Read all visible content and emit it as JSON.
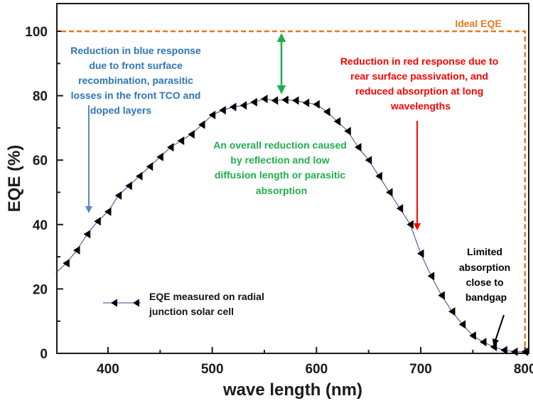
{
  "chart_data": {
    "type": "line",
    "xlabel": "wave length (nm)",
    "ylabel": "EQE (%)",
    "xlim": [
      350,
      810
    ],
    "ylim": [
      0,
      110
    ],
    "xticks": [
      400,
      500,
      600,
      700,
      800
    ],
    "yticks": [
      0,
      20,
      40,
      60,
      80,
      100
    ],
    "grid": false,
    "legend_position": "lower-left",
    "series": [
      {
        "name": "EQE measured on radial junction solar cell",
        "color": "#000000",
        "line_color": "#3b3f9a",
        "marker": "triangle-left",
        "x": [
          350,
          360,
          370,
          380,
          390,
          400,
          410,
          420,
          430,
          440,
          450,
          460,
          470,
          480,
          490,
          500,
          510,
          520,
          530,
          540,
          550,
          560,
          570,
          580,
          590,
          600,
          610,
          620,
          630,
          640,
          650,
          660,
          670,
          680,
          690,
          700,
          710,
          720,
          730,
          740,
          750,
          760,
          770,
          780,
          790,
          800
        ],
        "y": [
          25,
          28,
          32,
          37,
          41,
          44,
          49,
          52,
          55,
          58,
          61,
          64,
          66,
          68,
          71,
          74,
          75.5,
          76.5,
          77,
          78,
          79,
          78.5,
          78.7,
          78.5,
          77.8,
          77.3,
          75,
          72,
          69,
          64,
          60,
          55,
          50,
          45,
          40,
          31,
          24,
          18,
          13,
          9,
          5.5,
          3.5,
          2,
          1,
          0.5,
          0.5
        ]
      },
      {
        "name": "Ideal EQE",
        "color": "#e87722",
        "style": "dashed",
        "x": [
          355,
          800,
          800
        ],
        "y": [
          100,
          100,
          0
        ]
      }
    ],
    "annotations": {
      "ideal": "Ideal EQE",
      "blue": [
        "Reduction in blue response",
        "due to front surface",
        "recombination, parasitic",
        "losses in the front TCO and",
        "doped layers"
      ],
      "green": [
        "An overall reduction caused",
        "by reflection and low",
        "diffusion length or parasitic",
        "absorption"
      ],
      "red": [
        "Reduction in red response due to",
        "rear surface passivation, and",
        "reduced absorption at long",
        "wavelengths"
      ],
      "black": [
        "Limited",
        "absorption",
        "close to",
        "bandgap"
      ],
      "legend": [
        "EQE measured on radial",
        "junction solar cell"
      ]
    },
    "colors": {
      "blue": "#2e75b6",
      "green": "#1fae4b",
      "red": "#ff0000",
      "orange": "#e87722",
      "arrow_blue": "#5b86c5",
      "axis": "#1a1a1a"
    }
  }
}
